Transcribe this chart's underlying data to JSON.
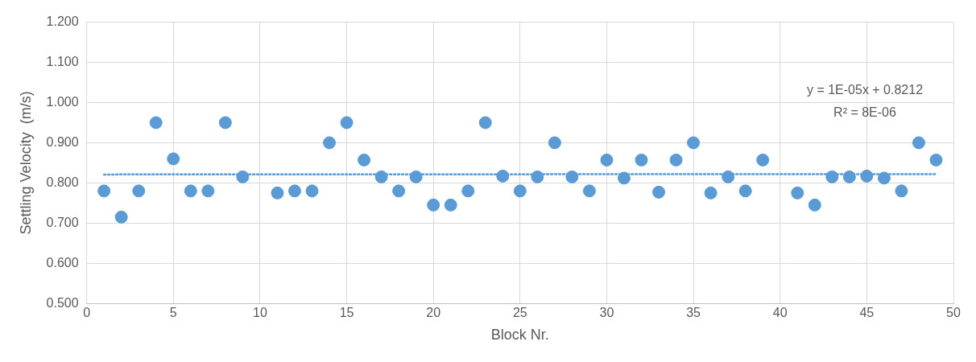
{
  "chart_data": {
    "type": "scatter",
    "xlabel": "Block Nr.",
    "ylabel": "Settling Velocity  (m/s)",
    "xlim": [
      0,
      50
    ],
    "xticks": [
      0,
      5,
      10,
      15,
      20,
      25,
      30,
      35,
      40,
      45,
      50
    ],
    "ylim": [
      0.5,
      1.2
    ],
    "yticks": [
      {
        "value": 0.5,
        "label": "0.500"
      },
      {
        "value": 0.6,
        "label": "0.600"
      },
      {
        "value": 0.7,
        "label": "0.700"
      },
      {
        "value": 0.8,
        "label": "0.800"
      },
      {
        "value": 0.9,
        "label": "0.900"
      },
      {
        "value": 1.0,
        "label": "1.000"
      },
      {
        "value": 1.1,
        "label": "1.100"
      },
      {
        "value": 1.2,
        "label": "1.200"
      }
    ],
    "grid": true,
    "legend": false,
    "marker": "circle",
    "annotations": [
      "y = 1E-05x + 0.8212",
      "R² = 8E-06"
    ],
    "series": [
      {
        "type": "scatter",
        "color": "#5b9bd5",
        "x": [
          1,
          2,
          3,
          4,
          5,
          6,
          7,
          8,
          9,
          11,
          12,
          13,
          14,
          15,
          16,
          17,
          18,
          19,
          20,
          21,
          22,
          23,
          24,
          25,
          26,
          27,
          28,
          29,
          30,
          31,
          32,
          33,
          34,
          35,
          36,
          37,
          38,
          39,
          41,
          42,
          43,
          44,
          45,
          46,
          47,
          48,
          49
        ],
        "values": [
          0.78,
          0.715,
          0.78,
          0.95,
          0.86,
          0.78,
          0.78,
          0.95,
          0.815,
          0.775,
          0.78,
          0.78,
          0.9,
          0.95,
          0.857,
          0.815,
          0.78,
          0.815,
          0.745,
          0.745,
          0.78,
          0.95,
          0.817,
          0.78,
          0.815,
          0.9,
          0.815,
          0.78,
          0.857,
          0.812,
          0.857,
          0.777,
          0.857,
          0.9,
          0.775,
          0.815,
          0.78,
          0.857,
          0.775,
          0.745,
          0.815,
          0.815,
          0.817,
          0.812,
          0.78,
          0.9,
          0.857
        ]
      },
      {
        "type": "line",
        "color": "#5b9bd5",
        "line_style": "dotted",
        "marker": "none",
        "x": [
          1,
          49
        ],
        "values": [
          0.821,
          0.822
        ]
      }
    ]
  }
}
